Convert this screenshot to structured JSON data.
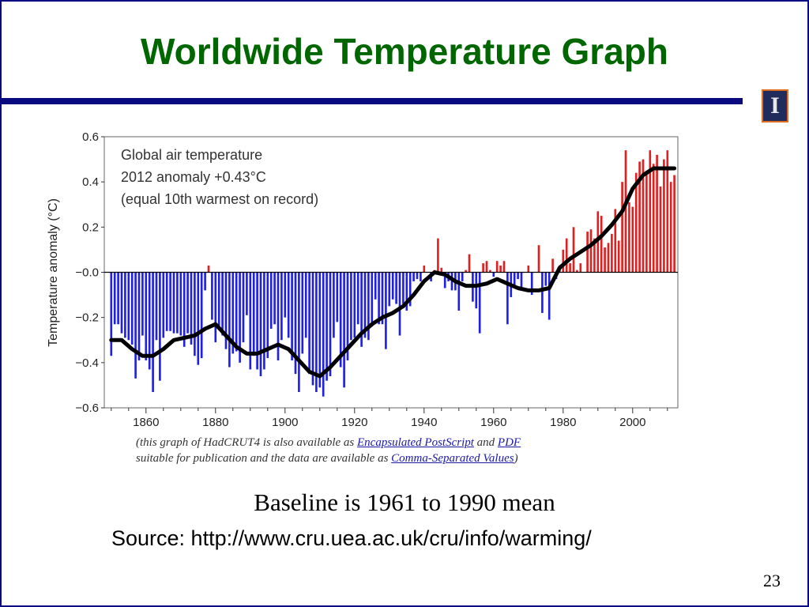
{
  "slide": {
    "title": "Worldwide Temperature Graph",
    "baseline_note": "Baseline is 1961 to 1990 mean",
    "source_note": "Source: http://www.cru.uea.ac.uk/cru/info/warming/",
    "page_number": "23",
    "logo_glyph": "I",
    "caption": {
      "t1": "(this graph of HadCRUT4 is also available as ",
      "link1": "Encapsulated PostScript",
      "t2": " and ",
      "link2": "PDF",
      "t3": "suitable for publication and the data are available as ",
      "link3": "Comma-Separated Values",
      "t4": ")"
    },
    "colors": {
      "title": "#006600",
      "rule": "#0a0a80",
      "positive_bar": "#e02020",
      "negative_bar": "#2020e0",
      "smooth_line": "#000000"
    }
  },
  "chart_data": {
    "type": "bar",
    "annotation_lines": [
      "Global air temperature",
      "2012 anomaly +0.43°C",
      "(equal 10th warmest on record)"
    ],
    "ylabel": "Temperature anomaly (°C)",
    "xlabel": "",
    "xlim": [
      1850,
      2012
    ],
    "ylim": [
      -0.6,
      0.6
    ],
    "y_ticks": [
      "0.6",
      "0.4",
      "0.2",
      "−0.0",
      "−0.2",
      "−0.4",
      "−0.6"
    ],
    "y_tick_values": [
      0.6,
      0.4,
      0.2,
      0.0,
      -0.2,
      -0.4,
      -0.6
    ],
    "x_ticks": [
      "1860",
      "1880",
      "1900",
      "1920",
      "1940",
      "1960",
      "1980",
      "2000"
    ],
    "x_tick_values": [
      1860,
      1880,
      1900,
      1920,
      1940,
      1960,
      1980,
      2000
    ],
    "grid": false,
    "series": [
      {
        "kind": "annual_anomaly_bars",
        "x": [
          1850,
          1851,
          1852,
          1853,
          1854,
          1855,
          1856,
          1857,
          1858,
          1859,
          1860,
          1861,
          1862,
          1863,
          1864,
          1865,
          1866,
          1867,
          1868,
          1869,
          1870,
          1871,
          1872,
          1873,
          1874,
          1875,
          1876,
          1877,
          1878,
          1879,
          1880,
          1881,
          1882,
          1883,
          1884,
          1885,
          1886,
          1887,
          1888,
          1889,
          1890,
          1891,
          1892,
          1893,
          1894,
          1895,
          1896,
          1897,
          1898,
          1899,
          1900,
          1901,
          1902,
          1903,
          1904,
          1905,
          1906,
          1907,
          1908,
          1909,
          1910,
          1911,
          1912,
          1913,
          1914,
          1915,
          1916,
          1917,
          1918,
          1919,
          1920,
          1921,
          1922,
          1923,
          1924,
          1925,
          1926,
          1927,
          1928,
          1929,
          1930,
          1931,
          1932,
          1933,
          1934,
          1935,
          1936,
          1937,
          1938,
          1939,
          1940,
          1941,
          1942,
          1943,
          1944,
          1945,
          1946,
          1947,
          1948,
          1949,
          1950,
          1951,
          1952,
          1953,
          1954,
          1955,
          1956,
          1957,
          1958,
          1959,
          1960,
          1961,
          1962,
          1963,
          1964,
          1965,
          1966,
          1967,
          1968,
          1969,
          1970,
          1971,
          1972,
          1973,
          1974,
          1975,
          1976,
          1977,
          1978,
          1979,
          1980,
          1981,
          1982,
          1983,
          1984,
          1985,
          1986,
          1987,
          1988,
          1989,
          1990,
          1991,
          1992,
          1993,
          1994,
          1995,
          1996,
          1997,
          1998,
          1999,
          2000,
          2001,
          2002,
          2003,
          2004,
          2005,
          2006,
          2007,
          2008,
          2009,
          2010,
          2011,
          2012
        ],
        "values": [
          -0.37,
          -0.23,
          -0.23,
          -0.27,
          -0.29,
          -0.3,
          -0.32,
          -0.47,
          -0.39,
          -0.28,
          -0.39,
          -0.43,
          -0.53,
          -0.3,
          -0.48,
          -0.29,
          -0.26,
          -0.26,
          -0.27,
          -0.27,
          -0.28,
          -0.33,
          -0.27,
          -0.32,
          -0.37,
          -0.41,
          -0.38,
          -0.08,
          0.03,
          -0.21,
          -0.31,
          -0.25,
          -0.28,
          -0.34,
          -0.42,
          -0.36,
          -0.35,
          -0.4,
          -0.31,
          -0.19,
          -0.43,
          -0.37,
          -0.43,
          -0.46,
          -0.43,
          -0.38,
          -0.25,
          -0.23,
          -0.39,
          -0.3,
          -0.2,
          -0.29,
          -0.39,
          -0.45,
          -0.53,
          -0.36,
          -0.29,
          -0.45,
          -0.5,
          -0.53,
          -0.51,
          -0.55,
          -0.48,
          -0.46,
          -0.29,
          -0.22,
          -0.42,
          -0.51,
          -0.39,
          -0.3,
          -0.29,
          -0.23,
          -0.33,
          -0.29,
          -0.3,
          -0.24,
          -0.12,
          -0.23,
          -0.23,
          -0.34,
          -0.15,
          -0.12,
          -0.14,
          -0.28,
          -0.14,
          -0.17,
          -0.15,
          -0.04,
          -0.03,
          -0.04,
          0.03,
          0.0,
          -0.04,
          0.01,
          0.15,
          0.02,
          -0.07,
          -0.04,
          -0.08,
          -0.08,
          -0.17,
          -0.04,
          0.01,
          0.08,
          -0.13,
          -0.16,
          -0.27,
          0.04,
          0.05,
          0.01,
          -0.02,
          0.05,
          0.03,
          0.05,
          -0.23,
          -0.11,
          -0.06,
          -0.03,
          -0.07,
          0.0,
          0.03,
          -0.1,
          0.0,
          0.12,
          -0.18,
          -0.06,
          -0.21,
          0.06,
          -0.03,
          0.03,
          0.1,
          0.15,
          0.04,
          0.2,
          0.01,
          0.04,
          0.0,
          0.18,
          0.19,
          0.15,
          0.27,
          0.25,
          0.11,
          0.13,
          0.17,
          0.28,
          0.14,
          0.4,
          0.54,
          0.31,
          0.29,
          0.44,
          0.49,
          0.5,
          0.45,
          0.54,
          0.48,
          0.52,
          0.38,
          0.5,
          0.54,
          0.4,
          0.43
        ]
      },
      {
        "kind": "smoothed_curve",
        "x": [
          1850,
          1853,
          1856,
          1859,
          1862,
          1865,
          1868,
          1871,
          1874,
          1877,
          1880,
          1883,
          1886,
          1889,
          1892,
          1895,
          1898,
          1901,
          1904,
          1907,
          1910,
          1913,
          1916,
          1919,
          1922,
          1925,
          1928,
          1931,
          1934,
          1937,
          1940,
          1943,
          1946,
          1949,
          1952,
          1955,
          1958,
          1961,
          1964,
          1967,
          1970,
          1973,
          1976,
          1979,
          1982,
          1985,
          1988,
          1991,
          1994,
          1997,
          2000,
          2003,
          2006,
          2009,
          2012
        ],
        "values": [
          -0.3,
          -0.3,
          -0.34,
          -0.37,
          -0.37,
          -0.34,
          -0.3,
          -0.29,
          -0.28,
          -0.25,
          -0.23,
          -0.28,
          -0.33,
          -0.36,
          -0.36,
          -0.34,
          -0.32,
          -0.34,
          -0.39,
          -0.44,
          -0.46,
          -0.42,
          -0.37,
          -0.32,
          -0.27,
          -0.23,
          -0.2,
          -0.18,
          -0.15,
          -0.1,
          -0.04,
          0.0,
          -0.01,
          -0.04,
          -0.06,
          -0.06,
          -0.05,
          -0.03,
          -0.05,
          -0.07,
          -0.08,
          -0.08,
          -0.07,
          0.02,
          0.06,
          0.09,
          0.12,
          0.16,
          0.21,
          0.27,
          0.37,
          0.43,
          0.46,
          0.46,
          0.46
        ]
      }
    ]
  }
}
